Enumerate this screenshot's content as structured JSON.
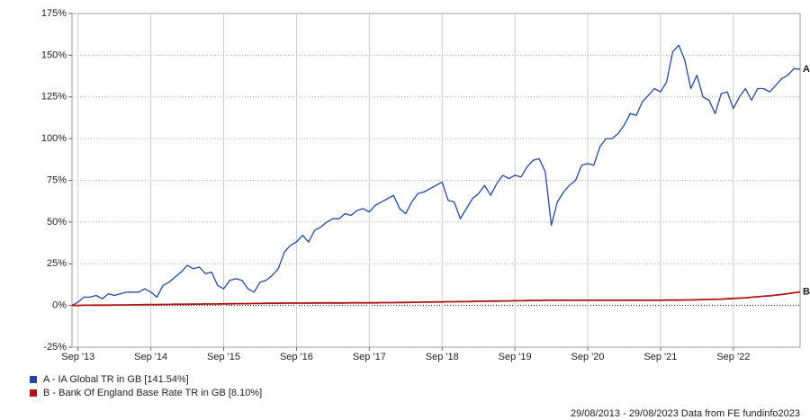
{
  "chart_data": {
    "type": "line",
    "x": [
      "2013-08",
      "2013-09",
      "2013-10",
      "2013-11",
      "2013-12",
      "2014-01",
      "2014-02",
      "2014-03",
      "2014-04",
      "2014-05",
      "2014-06",
      "2014-07",
      "2014-08",
      "2014-09",
      "2014-10",
      "2014-11",
      "2014-12",
      "2015-01",
      "2015-02",
      "2015-03",
      "2015-04",
      "2015-05",
      "2015-06",
      "2015-07",
      "2015-08",
      "2015-09",
      "2015-10",
      "2015-11",
      "2015-12",
      "2016-01",
      "2016-02",
      "2016-03",
      "2016-04",
      "2016-05",
      "2016-06",
      "2016-07",
      "2016-08",
      "2016-09",
      "2016-10",
      "2016-11",
      "2016-12",
      "2017-01",
      "2017-02",
      "2017-03",
      "2017-04",
      "2017-05",
      "2017-06",
      "2017-07",
      "2017-08",
      "2017-09",
      "2017-10",
      "2017-11",
      "2017-12",
      "2018-01",
      "2018-02",
      "2018-03",
      "2018-04",
      "2018-05",
      "2018-06",
      "2018-07",
      "2018-08",
      "2018-09",
      "2018-10",
      "2018-11",
      "2018-12",
      "2019-01",
      "2019-02",
      "2019-03",
      "2019-04",
      "2019-05",
      "2019-06",
      "2019-07",
      "2019-08",
      "2019-09",
      "2019-10",
      "2019-11",
      "2019-12",
      "2020-01",
      "2020-02",
      "2020-03",
      "2020-04",
      "2020-05",
      "2020-06",
      "2020-07",
      "2020-08",
      "2020-09",
      "2020-10",
      "2020-11",
      "2020-12",
      "2021-01",
      "2021-02",
      "2021-03",
      "2021-04",
      "2021-05",
      "2021-06",
      "2021-07",
      "2021-08",
      "2021-09",
      "2021-10",
      "2021-11",
      "2021-12",
      "2022-01",
      "2022-02",
      "2022-03",
      "2022-04",
      "2022-05",
      "2022-06",
      "2022-07",
      "2022-08",
      "2022-09",
      "2022-10",
      "2022-11",
      "2022-12",
      "2023-01",
      "2023-02",
      "2023-03",
      "2023-04",
      "2023-05",
      "2023-06",
      "2023-07",
      "2023-08"
    ],
    "series": [
      {
        "name": "A - IA Global TR in GB [141.54%]",
        "end_label": "A",
        "color": "#2447a0",
        "values": [
          0,
          2,
          5,
          5,
          6,
          4,
          7,
          6,
          7,
          8,
          8,
          8,
          10,
          8,
          5,
          12,
          14,
          17,
          20,
          24,
          22,
          23,
          19,
          20,
          12,
          10,
          15,
          16,
          15,
          10,
          8,
          14,
          15,
          18,
          22,
          32,
          36,
          38,
          42,
          38,
          45,
          47,
          50,
          52,
          52,
          55,
          54,
          57,
          58,
          56,
          60,
          62,
          64,
          66,
          58,
          55,
          62,
          67,
          68,
          70,
          72,
          74,
          63,
          62,
          52,
          58,
          64,
          67,
          72,
          66,
          73,
          78,
          76,
          78,
          77,
          83,
          87,
          88,
          80,
          48,
          62,
          68,
          72,
          75,
          84,
          85,
          84,
          95,
          100,
          100,
          103,
          108,
          115,
          114,
          122,
          126,
          130,
          128,
          134,
          152,
          156,
          147,
          130,
          138,
          125,
          123,
          115,
          127,
          128,
          118,
          125,
          130,
          123,
          130,
          130,
          128,
          132,
          136,
          138,
          142,
          141.54
        ]
      },
      {
        "name": "B - Bank Of England Base Rate TR in GB [8.10%]",
        "end_label": "B",
        "color": "#b01414",
        "values": [
          0,
          0,
          0.1,
          0.1,
          0.2,
          0.2,
          0.2,
          0.3,
          0.3,
          0.3,
          0.4,
          0.4,
          0.5,
          0.5,
          0.5,
          0.6,
          0.6,
          0.7,
          0.7,
          0.7,
          0.8,
          0.8,
          0.9,
          0.9,
          0.9,
          1.0,
          1.0,
          1.1,
          1.1,
          1.1,
          1.2,
          1.2,
          1.3,
          1.3,
          1.3,
          1.4,
          1.4,
          1.4,
          1.4,
          1.4,
          1.5,
          1.5,
          1.5,
          1.5,
          1.5,
          1.5,
          1.6,
          1.6,
          1.6,
          1.6,
          1.6,
          1.7,
          1.7,
          1.7,
          1.8,
          1.8,
          1.9,
          1.9,
          2.0,
          2.0,
          2.1,
          2.1,
          2.2,
          2.2,
          2.3,
          2.3,
          2.4,
          2.5,
          2.5,
          2.6,
          2.6,
          2.7,
          2.7,
          2.8,
          2.8,
          2.9,
          3.0,
          3.0,
          3.1,
          3.1,
          3.1,
          3.1,
          3.1,
          3.1,
          3.1,
          3.1,
          3.1,
          3.1,
          3.1,
          3.1,
          3.1,
          3.1,
          3.1,
          3.1,
          3.1,
          3.1,
          3.1,
          3.1,
          3.2,
          3.2,
          3.2,
          3.3,
          3.3,
          3.4,
          3.5,
          3.6,
          3.7,
          3.8,
          4.0,
          4.2,
          4.4,
          4.6,
          4.9,
          5.2,
          5.5,
          5.8,
          6.2,
          6.6,
          7.1,
          7.6,
          8.1
        ]
      }
    ],
    "ylim": [
      -25,
      175
    ],
    "yticks": [
      {
        "value": -25,
        "label": "-25%"
      },
      {
        "value": 0,
        "label": "0%"
      },
      {
        "value": 25,
        "label": "25%"
      },
      {
        "value": 50,
        "label": "50%"
      },
      {
        "value": 75,
        "label": "75%"
      },
      {
        "value": 100,
        "label": "100%"
      },
      {
        "value": 125,
        "label": "125%"
      },
      {
        "value": 150,
        "label": "150%"
      },
      {
        "value": 175,
        "label": "175%"
      }
    ],
    "xticks": [
      {
        "value": "2013-09",
        "label": "Sep '13"
      },
      {
        "value": "2014-09",
        "label": "Sep '14"
      },
      {
        "value": "2015-09",
        "label": "Sep '15"
      },
      {
        "value": "2016-09",
        "label": "Sep '16"
      },
      {
        "value": "2017-09",
        "label": "Sep '17"
      },
      {
        "value": "2018-09",
        "label": "Sep '18"
      },
      {
        "value": "2019-09",
        "label": "Sep '19"
      },
      {
        "value": "2020-09",
        "label": "Sep '20"
      },
      {
        "value": "2021-09",
        "label": "Sep '21"
      },
      {
        "value": "2022-09",
        "label": "Sep '22"
      }
    ],
    "grid": true,
    "source": "29/08/2013 - 29/08/2023 Data from FE fundinfo2023"
  }
}
